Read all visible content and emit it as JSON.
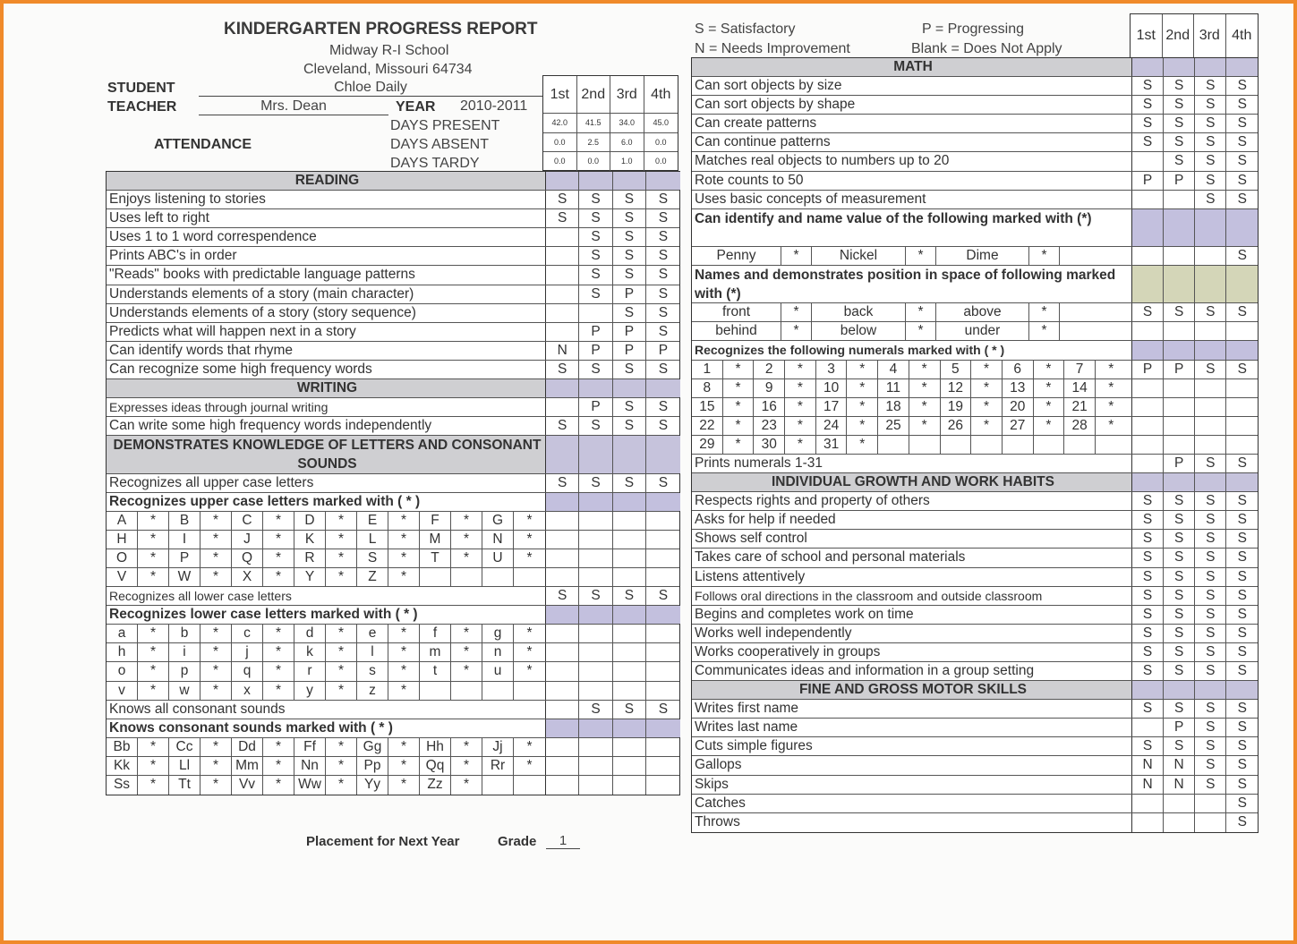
{
  "header": {
    "title": "KINDERGARTEN PROGRESS REPORT",
    "school": "Midway R-I School",
    "address": "Cleveland, Missouri 64734",
    "student_label": "STUDENT",
    "student": "Chloe Daily",
    "teacher_label": "TEACHER",
    "teacher": "Mrs. Dean",
    "year_label": "YEAR",
    "year": "2010-2011",
    "attendance_label": "ATTENDANCE"
  },
  "quarters": [
    "1st",
    "2nd",
    "3rd",
    "4th"
  ],
  "attendance": [
    {
      "label": "DAYS PRESENT",
      "values": [
        "42.0",
        "41.5",
        "34.0",
        "45.0"
      ]
    },
    {
      "label": "DAYS ABSENT",
      "values": [
        "0.0",
        "2.5",
        "6.0",
        "0.0"
      ]
    },
    {
      "label": "DAYS TARDY",
      "values": [
        "0.0",
        "0.0",
        "1.0",
        "0.0"
      ]
    }
  ],
  "legend": {
    "s": "S = Satisfactory",
    "p": "P = Progressing",
    "n": "N = Needs Improvement",
    "blank": "Blank = Does Not Apply"
  },
  "left_rows": [
    {
      "t": "hdr",
      "label": "READING",
      "g": [
        "",
        "",
        "",
        ""
      ]
    },
    {
      "t": "item",
      "label": "Enjoys listening to stories",
      "g": [
        "S",
        "S",
        "S",
        "S"
      ]
    },
    {
      "t": "item",
      "label": "Uses left to right",
      "g": [
        "S",
        "S",
        "S",
        "S"
      ]
    },
    {
      "t": "item",
      "label": "Uses 1 to 1 word correspendence",
      "g": [
        "",
        "S",
        "S",
        "S"
      ]
    },
    {
      "t": "item",
      "label": "Prints ABC's in order",
      "g": [
        "",
        "S",
        "S",
        "S"
      ]
    },
    {
      "t": "item",
      "label": "\"Reads\" books with predictable language patterns",
      "g": [
        "",
        "S",
        "S",
        "S"
      ]
    },
    {
      "t": "item",
      "label": "Understands elements of a story (main character)",
      "g": [
        "",
        "S",
        "P",
        "S"
      ]
    },
    {
      "t": "item",
      "label": "Understands elements of a story (story sequence)",
      "g": [
        "",
        "",
        "S",
        "S"
      ]
    },
    {
      "t": "item",
      "label": "Predicts what will happen next in a story",
      "g": [
        "",
        "P",
        "P",
        "S"
      ]
    },
    {
      "t": "item",
      "label": "Can identify words that rhyme",
      "g": [
        "N",
        "P",
        "P",
        "P"
      ]
    },
    {
      "t": "item",
      "label": "Can recognize some high frequency words",
      "g": [
        "S",
        "S",
        "S",
        "S"
      ]
    },
    {
      "t": "hdr",
      "label": "WRITING",
      "g": [
        "",
        "",
        "",
        ""
      ]
    },
    {
      "t": "small",
      "label": "Expresses ideas through journal writing",
      "g": [
        "",
        "P",
        "S",
        "S"
      ]
    },
    {
      "t": "item",
      "label": "Can write some high frequency words independently",
      "g": [
        "S",
        "S",
        "S",
        "S"
      ]
    },
    {
      "t": "hdrtall",
      "label": "DEMONSTRATES KNOWLEDGE OF LETTERS AND CONSONANT SOUNDS",
      "g": [
        "",
        "",
        "",
        ""
      ]
    },
    {
      "t": "item",
      "label": "Recognizes all upper case letters",
      "g": [
        "S",
        "S",
        "S",
        "S"
      ]
    },
    {
      "t": "bold shade",
      "label": "Recognizes upper case letters marked with ( * )",
      "g": [
        "",
        "",
        "",
        ""
      ]
    },
    {
      "t": "grid",
      "cells": [
        "A",
        "*",
        "B",
        "*",
        "C",
        "*",
        "D",
        "*",
        "E",
        "*",
        "F",
        "*",
        "G",
        "*"
      ],
      "g": [
        "",
        "",
        "",
        ""
      ]
    },
    {
      "t": "grid",
      "cells": [
        "H",
        "*",
        "I",
        "*",
        "J",
        "*",
        "K",
        "*",
        "L",
        "*",
        "M",
        "*",
        "N",
        "*"
      ],
      "g": [
        "",
        "",
        "",
        ""
      ]
    },
    {
      "t": "grid",
      "cells": [
        "O",
        "*",
        "P",
        "*",
        "Q",
        "*",
        "R",
        "*",
        "S",
        "*",
        "T",
        "*",
        "U",
        "*"
      ],
      "g": [
        "",
        "",
        "",
        ""
      ]
    },
    {
      "t": "grid",
      "cells": [
        "V",
        "*",
        "W",
        "*",
        "X",
        "*",
        "Y",
        "*",
        "Z",
        "*",
        "",
        "",
        "",
        ""
      ],
      "g": [
        "",
        "",
        "",
        ""
      ]
    },
    {
      "t": "small",
      "label": "Recognizes all lower case letters",
      "g": [
        "S",
        "S",
        "S",
        "S"
      ]
    },
    {
      "t": "bold shade",
      "label": "Recognizes lower case letters marked with ( * )",
      "g": [
        "",
        "",
        "",
        ""
      ]
    },
    {
      "t": "grid",
      "cells": [
        "a",
        "*",
        "b",
        "*",
        "c",
        "*",
        "d",
        "*",
        "e",
        "*",
        "f",
        "*",
        "g",
        "*"
      ],
      "g": [
        "",
        "",
        "",
        ""
      ]
    },
    {
      "t": "grid",
      "cells": [
        "h",
        "*",
        "i",
        "*",
        "j",
        "*",
        "k",
        "*",
        "l",
        "*",
        "m",
        "*",
        "n",
        "*"
      ],
      "g": [
        "",
        "",
        "",
        ""
      ]
    },
    {
      "t": "grid",
      "cells": [
        "o",
        "*",
        "p",
        "*",
        "q",
        "*",
        "r",
        "*",
        "s",
        "*",
        "t",
        "*",
        "u",
        "*"
      ],
      "g": [
        "",
        "",
        "",
        ""
      ]
    },
    {
      "t": "grid",
      "cells": [
        "v",
        "*",
        "w",
        "*",
        "x",
        "*",
        "y",
        "*",
        "z",
        "*",
        "",
        "",
        "",
        ""
      ],
      "g": [
        "",
        "",
        "",
        ""
      ]
    },
    {
      "t": "item",
      "label": "Knows all consonant sounds",
      "g": [
        "",
        "S",
        "S",
        "S"
      ]
    },
    {
      "t": "bold shade",
      "label": "Knows consonant sounds  marked with ( * )",
      "g": [
        "",
        "",
        "",
        ""
      ]
    },
    {
      "t": "grid",
      "cells": [
        "Bb",
        "*",
        "Cc",
        "*",
        "Dd",
        "*",
        "Ff",
        "*",
        "Gg",
        "*",
        "Hh",
        "*",
        "Jj",
        "*"
      ],
      "g": [
        "",
        "",
        "",
        ""
      ]
    },
    {
      "t": "grid",
      "cells": [
        "Kk",
        "*",
        "Ll",
        "*",
        "Mm",
        "*",
        "Nn",
        "*",
        "Pp",
        "*",
        "Qq",
        "*",
        "Rr",
        "*"
      ],
      "g": [
        "",
        "",
        "",
        ""
      ]
    },
    {
      "t": "grid",
      "cells": [
        "Ss",
        "*",
        "Tt",
        "*",
        "Vv",
        "*",
        "Ww",
        "*",
        "Yy",
        "*",
        "Zz",
        "*",
        "",
        ""
      ],
      "g": [
        "",
        "",
        "",
        ""
      ]
    }
  ],
  "right_rows": [
    {
      "t": "hdr",
      "label": "MATH",
      "g": [
        "",
        "",
        "",
        ""
      ]
    },
    {
      "t": "item",
      "label": "Can sort objects by size",
      "g": [
        "S",
        "S",
        "S",
        "S"
      ]
    },
    {
      "t": "item",
      "label": "Can sort objects by shape",
      "g": [
        "S",
        "S",
        "S",
        "S"
      ]
    },
    {
      "t": "item",
      "label": "Can create patterns",
      "g": [
        "S",
        "S",
        "S",
        "S"
      ]
    },
    {
      "t": "item",
      "label": "Can continue patterns",
      "g": [
        "S",
        "S",
        "S",
        "S"
      ]
    },
    {
      "t": "item",
      "label": "Matches real objects to numbers up to 20",
      "g": [
        "",
        "S",
        "S",
        "S"
      ]
    },
    {
      "t": "item",
      "label": "Rote counts to 50",
      "g": [
        "P",
        "P",
        "S",
        "S"
      ]
    },
    {
      "t": "item",
      "label": "Uses basic concepts of measurement",
      "g": [
        "",
        "",
        "S",
        "S"
      ]
    },
    {
      "t": "bold tall shade",
      "label": "Can identify and name value of the following marked with (*)",
      "g": [
        "",
        "",
        "",
        ""
      ]
    },
    {
      "t": "words",
      "cells": [
        "Penny",
        "*",
        "Nickel",
        "*",
        "Dime",
        "*",
        ""
      ],
      "g": [
        "",
        "",
        "",
        "S"
      ]
    },
    {
      "t": "bold tall shadey",
      "label": "Names and demonstrates position in space of following marked with (*)",
      "g": [
        "",
        "",
        "",
        ""
      ]
    },
    {
      "t": "words",
      "cells": [
        "front",
        "*",
        "back",
        "*",
        "above",
        "*",
        ""
      ],
      "g": [
        "S",
        "S",
        "S",
        "S"
      ]
    },
    {
      "t": "words",
      "cells": [
        "behind",
        "*",
        "below",
        "*",
        "under",
        "*",
        ""
      ],
      "g": [
        "",
        "",
        "",
        ""
      ]
    },
    {
      "t": "bold shade small",
      "label": "Recognizes the following numerals marked with ( * )",
      "g": [
        "",
        "",
        "",
        ""
      ]
    },
    {
      "t": "grid",
      "cells": [
        "1",
        "*",
        "2",
        "*",
        "3",
        "*",
        "4",
        "*",
        "5",
        "*",
        "6",
        "*",
        "7",
        "*"
      ],
      "g": [
        "P",
        "P",
        "S",
        "S"
      ]
    },
    {
      "t": "grid",
      "cells": [
        "8",
        "*",
        "9",
        "*",
        "10",
        "*",
        "11",
        "*",
        "12",
        "*",
        "13",
        "*",
        "14",
        "*"
      ],
      "g": [
        "",
        "",
        "",
        ""
      ]
    },
    {
      "t": "grid",
      "cells": [
        "15",
        "*",
        "16",
        "*",
        "17",
        "*",
        "18",
        "*",
        "19",
        "*",
        "20",
        "*",
        "21",
        "*"
      ],
      "g": [
        "",
        "",
        "",
        ""
      ]
    },
    {
      "t": "grid",
      "cells": [
        "22",
        "*",
        "23",
        "*",
        "24",
        "*",
        "25",
        "*",
        "26",
        "*",
        "27",
        "*",
        "28",
        "*"
      ],
      "g": [
        "",
        "",
        "",
        ""
      ]
    },
    {
      "t": "grid",
      "cells": [
        "29",
        "*",
        "30",
        "*",
        "31",
        "*",
        "",
        "",
        "",
        "",
        "",
        "",
        "",
        ""
      ],
      "g": [
        "",
        "",
        "",
        ""
      ]
    },
    {
      "t": "item",
      "label": "Prints numerals 1-31",
      "g": [
        "",
        "P",
        "S",
        "S"
      ]
    },
    {
      "t": "hdr",
      "label": "INDIVIDUAL GROWTH AND WORK HABITS",
      "g": [
        "",
        "",
        "",
        ""
      ]
    },
    {
      "t": "item",
      "label": "Respects rights and property of others",
      "g": [
        "S",
        "S",
        "S",
        "S"
      ]
    },
    {
      "t": "item",
      "label": "Asks for help if needed",
      "g": [
        "S",
        "S",
        "S",
        "S"
      ]
    },
    {
      "t": "item",
      "label": "Shows self control",
      "g": [
        "S",
        "S",
        "S",
        "S"
      ]
    },
    {
      "t": "item",
      "label": "Takes care of school and personal materials",
      "g": [
        "S",
        "S",
        "S",
        "S"
      ]
    },
    {
      "t": "item",
      "label": "Listens attentively",
      "g": [
        "S",
        "S",
        "S",
        "S"
      ]
    },
    {
      "t": "small",
      "label": "Follows oral directions in the classroom and outside classroom",
      "g": [
        "S",
        "S",
        "S",
        "S"
      ]
    },
    {
      "t": "item",
      "label": "Begins and completes work on time",
      "g": [
        "S",
        "S",
        "S",
        "S"
      ]
    },
    {
      "t": "item",
      "label": "Works well independently",
      "g": [
        "S",
        "S",
        "S",
        "S"
      ]
    },
    {
      "t": "item",
      "label": "Works cooperatively in groups",
      "g": [
        "S",
        "S",
        "S",
        "S"
      ]
    },
    {
      "t": "item",
      "label": "Communicates ideas and information in a group setting",
      "g": [
        "S",
        "S",
        "S",
        "S"
      ]
    },
    {
      "t": "hdr",
      "label": "FINE AND GROSS MOTOR SKILLS",
      "g": [
        "",
        "",
        "",
        ""
      ]
    },
    {
      "t": "item",
      "label": "Writes first name",
      "g": [
        "S",
        "S",
        "S",
        "S"
      ]
    },
    {
      "t": "item",
      "label": "Writes last name",
      "g": [
        "",
        "P",
        "S",
        "S"
      ]
    },
    {
      "t": "item",
      "label": "Cuts simple figures",
      "g": [
        "S",
        "S",
        "S",
        "S"
      ]
    },
    {
      "t": "item",
      "label": "Gallops",
      "g": [
        "N",
        "N",
        "S",
        "S"
      ]
    },
    {
      "t": "item",
      "label": "Skips",
      "g": [
        "N",
        "N",
        "S",
        "S"
      ]
    },
    {
      "t": "item",
      "label": "Catches",
      "g": [
        "",
        "",
        "",
        "S"
      ]
    },
    {
      "t": "item",
      "label": "Throws",
      "g": [
        "",
        "",
        "",
        "S"
      ]
    }
  ],
  "placement": {
    "label": "Placement for Next Year",
    "grade_label": "Grade",
    "grade": "1"
  }
}
